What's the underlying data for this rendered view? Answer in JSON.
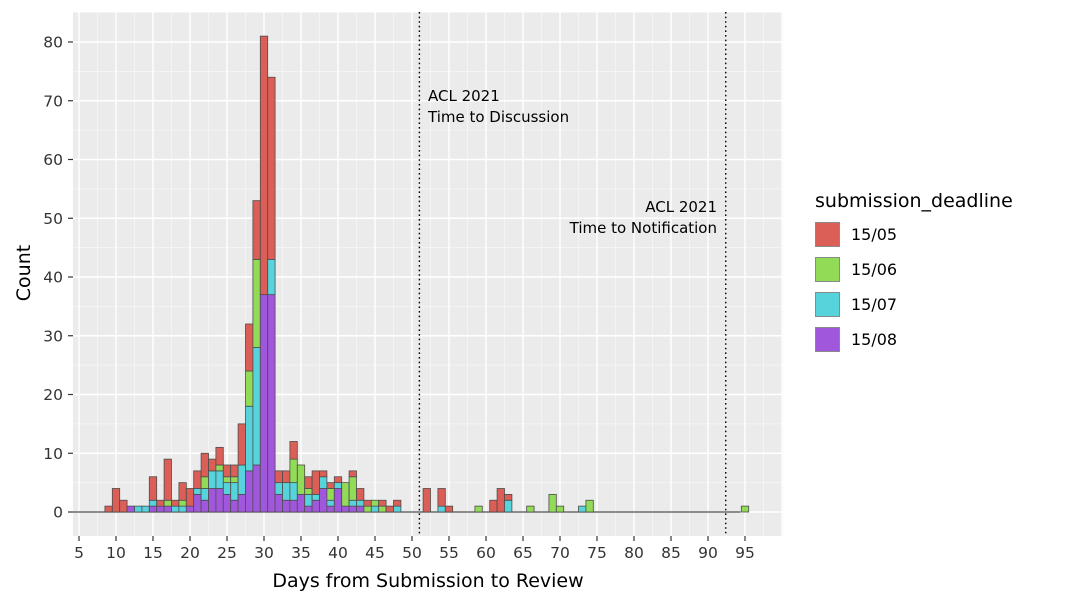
{
  "chart_data": {
    "type": "bar",
    "variant": "stacked-histogram",
    "xlabel": "Days from Submission to Review",
    "ylabel": "Count",
    "x_ticks": [
      5,
      10,
      15,
      20,
      25,
      30,
      35,
      40,
      45,
      50,
      55,
      60,
      65,
      70,
      75,
      80,
      85,
      90,
      95
    ],
    "y_ticks": [
      0,
      10,
      20,
      30,
      40,
      50,
      60,
      70,
      80
    ],
    "xlim": [
      4.2,
      100.2
    ],
    "ylim": [
      0,
      85
    ],
    "grid": "major-and-minor-white-on-gray",
    "legend_position": "right",
    "legend_title": "submission_deadline",
    "series_bottom_to_top": [
      "15/08",
      "15/07",
      "15/06",
      "15/05"
    ],
    "series_colors_bottom_to_top": [
      "#a157db",
      "#57d3db",
      "#91db57",
      "#db5f57"
    ],
    "bins_note": "counts per 1-day bin, order [15/08, 15/07, 15/06, 15/05]",
    "bins": [
      {
        "day": 9,
        "counts": [
          0,
          0,
          0,
          1
        ]
      },
      {
        "day": 10,
        "counts": [
          0,
          0,
          0,
          4
        ]
      },
      {
        "day": 11,
        "counts": [
          0,
          0,
          0,
          2
        ]
      },
      {
        "day": 12,
        "counts": [
          1,
          0,
          0,
          0
        ]
      },
      {
        "day": 13,
        "counts": [
          0,
          1,
          0,
          0
        ]
      },
      {
        "day": 14,
        "counts": [
          0,
          1,
          0,
          0
        ]
      },
      {
        "day": 15,
        "counts": [
          1,
          1,
          0,
          4
        ]
      },
      {
        "day": 16,
        "counts": [
          1,
          0,
          0,
          1
        ]
      },
      {
        "day": 17,
        "counts": [
          1,
          0,
          1,
          7
        ]
      },
      {
        "day": 18,
        "counts": [
          0,
          1,
          0,
          1
        ]
      },
      {
        "day": 19,
        "counts": [
          0,
          1,
          1,
          3
        ]
      },
      {
        "day": 20,
        "counts": [
          1,
          0,
          0,
          3
        ]
      },
      {
        "day": 21,
        "counts": [
          3,
          1,
          0,
          3
        ]
      },
      {
        "day": 22,
        "counts": [
          2,
          2,
          2,
          4
        ]
      },
      {
        "day": 23,
        "counts": [
          4,
          3,
          0,
          2
        ]
      },
      {
        "day": 24,
        "counts": [
          4,
          3,
          1,
          3
        ]
      },
      {
        "day": 25,
        "counts": [
          3,
          2,
          1,
          2
        ]
      },
      {
        "day": 26,
        "counts": [
          2,
          3,
          1,
          2
        ]
      },
      {
        "day": 27,
        "counts": [
          3,
          5,
          0,
          7
        ]
      },
      {
        "day": 28,
        "counts": [
          7,
          11,
          6,
          8
        ]
      },
      {
        "day": 29,
        "counts": [
          8,
          20,
          15,
          10
        ]
      },
      {
        "day": 30,
        "counts": [
          37,
          0,
          0,
          44
        ]
      },
      {
        "day": 31,
        "counts": [
          37,
          6,
          0,
          31
        ]
      },
      {
        "day": 32,
        "counts": [
          3,
          2,
          0,
          2
        ]
      },
      {
        "day": 33,
        "counts": [
          2,
          3,
          0,
          2
        ]
      },
      {
        "day": 34,
        "counts": [
          2,
          3,
          4,
          3
        ]
      },
      {
        "day": 35,
        "counts": [
          3,
          0,
          5,
          0
        ]
      },
      {
        "day": 36,
        "counts": [
          1,
          2,
          1,
          2
        ]
      },
      {
        "day": 37,
        "counts": [
          2,
          1,
          0,
          4
        ]
      },
      {
        "day": 38,
        "counts": [
          4,
          2,
          0,
          1
        ]
      },
      {
        "day": 39,
        "counts": [
          1,
          1,
          2,
          1
        ]
      },
      {
        "day": 40,
        "counts": [
          4,
          1,
          0,
          1
        ]
      },
      {
        "day": 41,
        "counts": [
          1,
          0,
          4,
          0
        ]
      },
      {
        "day": 42,
        "counts": [
          1,
          1,
          4,
          1
        ]
      },
      {
        "day": 43,
        "counts": [
          1,
          1,
          0,
          2
        ]
      },
      {
        "day": 44,
        "counts": [
          0,
          0,
          1,
          1
        ]
      },
      {
        "day": 45,
        "counts": [
          0,
          1,
          1,
          0
        ]
      },
      {
        "day": 46,
        "counts": [
          0,
          0,
          1,
          1
        ]
      },
      {
        "day": 47,
        "counts": [
          0,
          0,
          0,
          1
        ]
      },
      {
        "day": 48,
        "counts": [
          0,
          1,
          0,
          1
        ]
      },
      {
        "day": 52,
        "counts": [
          0,
          0,
          0,
          4
        ]
      },
      {
        "day": 54,
        "counts": [
          0,
          1,
          0,
          3
        ]
      },
      {
        "day": 55,
        "counts": [
          0,
          0,
          0,
          1
        ]
      },
      {
        "day": 59,
        "counts": [
          0,
          0,
          1,
          0
        ]
      },
      {
        "day": 61,
        "counts": [
          0,
          0,
          0,
          2
        ]
      },
      {
        "day": 62,
        "counts": [
          0,
          0,
          0,
          4
        ]
      },
      {
        "day": 63,
        "counts": [
          0,
          2,
          0,
          1
        ]
      },
      {
        "day": 66,
        "counts": [
          0,
          0,
          1,
          0
        ]
      },
      {
        "day": 69,
        "counts": [
          0,
          0,
          3,
          0
        ]
      },
      {
        "day": 70,
        "counts": [
          0,
          0,
          1,
          0
        ]
      },
      {
        "day": 73,
        "counts": [
          0,
          1,
          0,
          0
        ]
      },
      {
        "day": 74,
        "counts": [
          0,
          0,
          2,
          0
        ]
      },
      {
        "day": 95,
        "counts": [
          0,
          0,
          1,
          0
        ]
      }
    ],
    "vlines": [
      {
        "x_day": 51,
        "style": "dotted-black"
      },
      {
        "x_day": 92.4,
        "style": "dotted-black"
      }
    ],
    "baseline": {
      "y": 0,
      "from_day": 4.2,
      "to_day": 94.4,
      "color": "#4d4d4d"
    }
  },
  "annotations": {
    "discussion": {
      "line1": "ACL 2021",
      "line2": "Time to Discussion"
    },
    "notification": {
      "line1": "ACL 2021",
      "line2": "Time to Notification"
    }
  },
  "legend": {
    "title": "submission_deadline",
    "entries": [
      {
        "label": "15/05",
        "color": "#db5f57"
      },
      {
        "label": "15/06",
        "color": "#91db57"
      },
      {
        "label": "15/07",
        "color": "#57d3db"
      },
      {
        "label": "15/08",
        "color": "#a157db"
      }
    ]
  },
  "axes": {
    "x_title": "Days from Submission to Review",
    "y_title": "Count"
  },
  "theme": {
    "panel_bg": "#ebebeb",
    "grid_major": "#ffffff",
    "grid_minor": "#f7f7f7",
    "bar_stroke": "#4d4d4d",
    "tick_label_color": "#333333",
    "axis_line_color": "#4d4d4d"
  }
}
